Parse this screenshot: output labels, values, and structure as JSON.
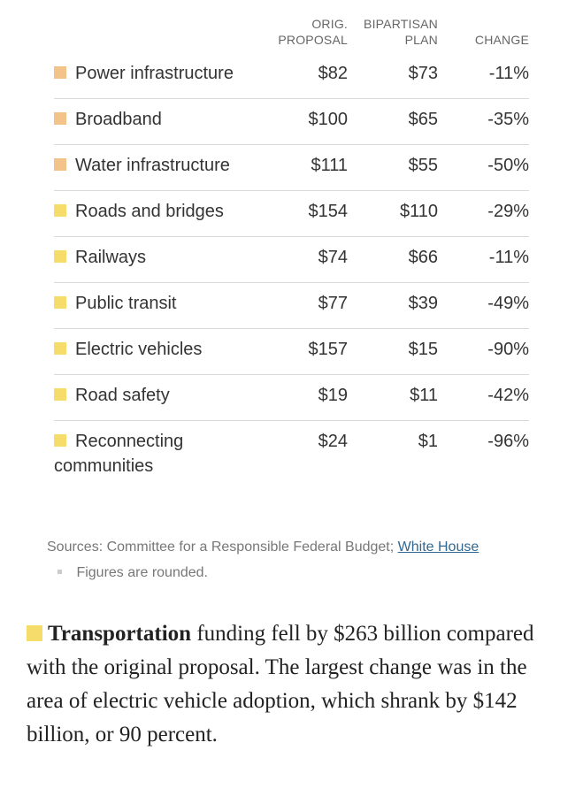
{
  "header": {
    "col_orig": [
      "ORIG.",
      "PROPOSAL"
    ],
    "col_bipartisan": [
      "BIPARTISAN",
      "PLAN"
    ],
    "col_change": "CHANGE"
  },
  "colors": {
    "orange": "#f2c48a",
    "yellow": "#f6dd6b",
    "link": "#326891"
  },
  "rows": [
    {
      "label": "Power infrastructure",
      "orig": "$82",
      "bipartisan": "$73",
      "change": "-11%",
      "color": "#f2c48a"
    },
    {
      "label": "Broadband",
      "orig": "$100",
      "bipartisan": "$65",
      "change": "-35%",
      "color": "#f2c48a"
    },
    {
      "label": "Water infrastructure",
      "orig": "$111",
      "bipartisan": "$55",
      "change": "-50%",
      "color": "#f2c48a"
    },
    {
      "label": "Roads and bridges",
      "orig": "$154",
      "bipartisan": "$110",
      "change": "-29%",
      "color": "#f6dd6b"
    },
    {
      "label": "Railways",
      "orig": "$74",
      "bipartisan": "$66",
      "change": "-11%",
      "color": "#f6dd6b"
    },
    {
      "label": "Public transit",
      "orig": "$77",
      "bipartisan": "$39",
      "change": "-49%",
      "color": "#f6dd6b"
    },
    {
      "label": "Electric vehicles",
      "orig": "$157",
      "bipartisan": "$15",
      "change": "-90%",
      "color": "#f6dd6b"
    },
    {
      "label": "Road safety",
      "orig": "$19",
      "bipartisan": "$11",
      "change": "-42%",
      "color": "#f6dd6b"
    },
    {
      "label": "Reconnecting communities",
      "orig": "$24",
      "bipartisan": "$1",
      "change": "-96%",
      "color": "#f6dd6b"
    }
  ],
  "sources": {
    "prefix": "Sources: Committee for a Responsible Federal Budget;",
    "link": "White House",
    "note": "Figures are rounded."
  },
  "summary": {
    "bold": "Transportation",
    "text": " funding fell by $263 billion compared with the original proposal. The largest change was in the area of electric vehicle adoption, which shrank by $142 billion, or 90 percent."
  }
}
